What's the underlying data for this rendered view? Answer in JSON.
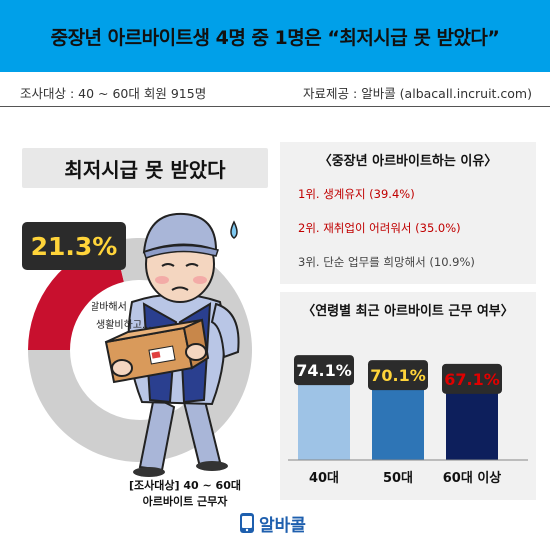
{
  "header": {
    "title": "중장년 아르바이트생 4명 중 1명은 “최저시급 못 받았다”"
  },
  "meta": {
    "survey": "조사대상 : 40 ~ 60대 회원 915명",
    "source": "자료제공 : 알바콜 (albacall.incruit.com)"
  },
  "left": {
    "headline": "최저시급 못 받았다",
    "percent_label": "21.3%",
    "speech_line1": "알바해서",
    "speech_line2": "생활비하고...",
    "caption_line1": "[조사대상] 40 ~ 60대",
    "caption_line2": "아르바이트 근무자"
  },
  "reasons": {
    "title": "〈중장년 아르바이트하는 이유〉",
    "items": [
      {
        "label": "1위. 생계유지 (39.4%)",
        "value": 39.4
      },
      {
        "label": "2위. 재취업이 어려워서 (35.0%)",
        "value": 35.0
      },
      {
        "label": "3위. 단순 업무를 희망해서 (10.9%)",
        "value": 10.9
      }
    ]
  },
  "age_chart_title": "〈연령별 최근 아르바이트 근무 여부〉",
  "logo": {
    "text": "알바콜"
  },
  "colors": {
    "title_bg": "#00a0e9",
    "donut_red": "#c8102e",
    "donut_gray": "#cfcfcf",
    "badge_bg": "#2b2b2b",
    "badge_text": "#ffd43a",
    "red_text": "#c00000",
    "bar_40": "#9ec3e6",
    "bar_50": "#2e75b6",
    "bar_60": "#0d1f5c"
  },
  "chart_data": [
    {
      "type": "pie",
      "title": "최저시급 못 받았다",
      "categories": [
        "최저시급 못 받았다",
        ""
      ],
      "values": [
        21.3,
        78.7
      ]
    },
    {
      "type": "bar",
      "title": "〈연령별 최근 아르바이트 근무 여부〉",
      "categories": [
        "40대",
        "50대",
        "60대 이상"
      ],
      "values": [
        74.1,
        70.1,
        67.1
      ],
      "value_labels": [
        "74.1%",
        "70.1%",
        "67.1%"
      ],
      "label_colors": [
        "#ffffff",
        "#ffd43a",
        "#e00000"
      ],
      "bar_colors": [
        "#9ec3e6",
        "#2e75b6",
        "#0d1f5c"
      ]
    }
  ]
}
